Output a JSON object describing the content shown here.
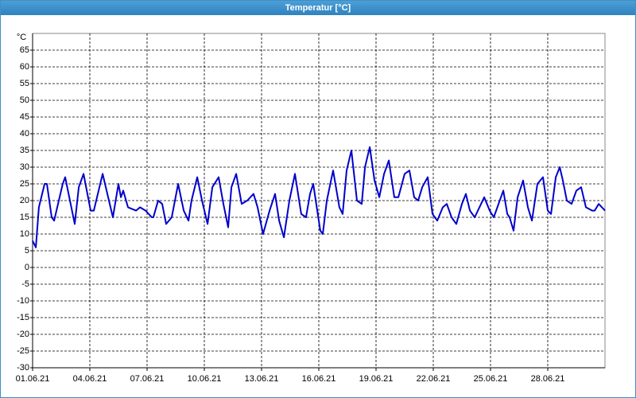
{
  "window_title": "Temperatur [°C]",
  "chart_data": {
    "type": "line",
    "y_unit": "°C",
    "color": "#0000cc",
    "grid": true,
    "xlim": [
      1,
      31
    ],
    "xticks": [
      {
        "value": 1,
        "label": "01.06.21"
      },
      {
        "value": 4,
        "label": "04.06.21"
      },
      {
        "value": 7,
        "label": "07.06.21"
      },
      {
        "value": 10,
        "label": "10.06.21"
      },
      {
        "value": 13,
        "label": "13.06.21"
      },
      {
        "value": 16,
        "label": "16.06.21"
      },
      {
        "value": 19,
        "label": "19.06.21"
      },
      {
        "value": 22,
        "label": "22.06.21"
      },
      {
        "value": 25,
        "label": "25.06.21"
      },
      {
        "value": 28,
        "label": "28.06.21"
      }
    ],
    "ylim": [
      -30,
      70
    ],
    "yticks": [
      -30,
      -25,
      -20,
      -15,
      -10,
      -5,
      0,
      5,
      10,
      15,
      20,
      25,
      30,
      35,
      40,
      45,
      50,
      55,
      60,
      65
    ],
    "x": [
      1.0,
      1.17,
      1.33,
      1.63,
      1.75,
      2.0,
      2.13,
      2.58,
      2.71,
      3.21,
      3.42,
      3.67,
      4.04,
      4.21,
      4.67,
      5.21,
      5.5,
      5.63,
      5.75,
      6.0,
      6.42,
      6.63,
      6.92,
      7.25,
      7.33,
      7.58,
      7.79,
      8.0,
      8.29,
      8.63,
      8.92,
      9.17,
      9.33,
      9.63,
      9.88,
      10.17,
      10.42,
      10.75,
      11.0,
      11.25,
      11.42,
      11.67,
      11.96,
      12.25,
      12.58,
      12.79,
      13.08,
      13.42,
      13.71,
      13.92,
      14.17,
      14.46,
      14.75,
      15.08,
      15.33,
      15.54,
      15.71,
      16.08,
      16.21,
      16.42,
      16.75,
      17.08,
      17.25,
      17.46,
      17.71,
      18.0,
      18.25,
      18.42,
      18.67,
      18.92,
      19.17,
      19.42,
      19.67,
      19.96,
      20.17,
      20.5,
      20.75,
      21.0,
      21.21,
      21.42,
      21.71,
      21.96,
      22.21,
      22.5,
      22.71,
      22.96,
      23.21,
      23.5,
      23.71,
      23.92,
      24.17,
      24.42,
      24.67,
      24.96,
      25.17,
      25.42,
      25.67,
      25.88,
      26.0,
      26.21,
      26.42,
      26.71,
      26.96,
      27.17,
      27.46,
      27.75,
      28.0,
      28.17,
      28.42,
      28.63,
      28.79,
      29.0,
      29.25,
      29.5,
      29.75,
      30.0,
      30.33,
      30.46,
      30.67,
      31.0
    ],
    "values": [
      8,
      6,
      18,
      25,
      25,
      15,
      14,
      25,
      27,
      13,
      24,
      28,
      17,
      17,
      28,
      15,
      25,
      21,
      23,
      18,
      17,
      18,
      17,
      15,
      15,
      20,
      19,
      13,
      15,
      25,
      17,
      14,
      20,
      27,
      20,
      13,
      24,
      27,
      19,
      12,
      24,
      28,
      19,
      20,
      22,
      18,
      10,
      17,
      22,
      14,
      9,
      20,
      28,
      16,
      15,
      22,
      25,
      11,
      10,
      20,
      29,
      18,
      16,
      29,
      35,
      20,
      19,
      30,
      36,
      26,
      21,
      28,
      32,
      21,
      21,
      28,
      29,
      21,
      20,
      24,
      27,
      16,
      14,
      18,
      19,
      15,
      13,
      19,
      22,
      17,
      15,
      18,
      21,
      17,
      15,
      19,
      23,
      16,
      15,
      11,
      21,
      26,
      18,
      14,
      25,
      27,
      17,
      16,
      27,
      30,
      26,
      20,
      19,
      23,
      24,
      18,
      17,
      17,
      19,
      17
    ]
  }
}
